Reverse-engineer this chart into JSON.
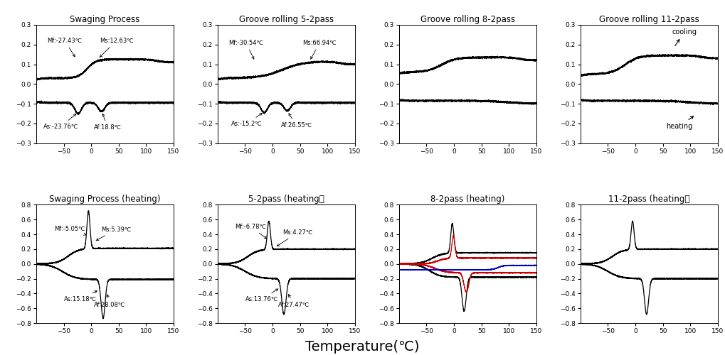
{
  "titles_row1": [
    "Swaging Process",
    "Groove rolling 5-2pass",
    "Groove rolling 8-2pass",
    "Groove rolling 11-2pass"
  ],
  "titles_row2": [
    "Swaging Process (heating)",
    "5-2pass (heating）",
    "8-2pass (heating)",
    "11-2pass (heating）"
  ],
  "xlabel": "Temperature(℃)",
  "background_color": "#ffffff",
  "line_color": "#000000",
  "line_color_red": "#cc0000",
  "line_color_blue": "#0000cc",
  "row1_ylim": [
    -0.3,
    0.3
  ],
  "row2_ylim": [
    -0.8,
    0.8
  ],
  "xlim": [
    -100,
    150
  ],
  "row1_yticks": [
    -0.3,
    -0.2,
    -0.1,
    0.0,
    0.1,
    0.2,
    0.3
  ],
  "row2_yticks": [
    -0.8,
    -0.6,
    -0.4,
    -0.2,
    0.0,
    0.2,
    0.4,
    0.6,
    0.8
  ],
  "xticks": [
    -50,
    0,
    50,
    100,
    150
  ]
}
